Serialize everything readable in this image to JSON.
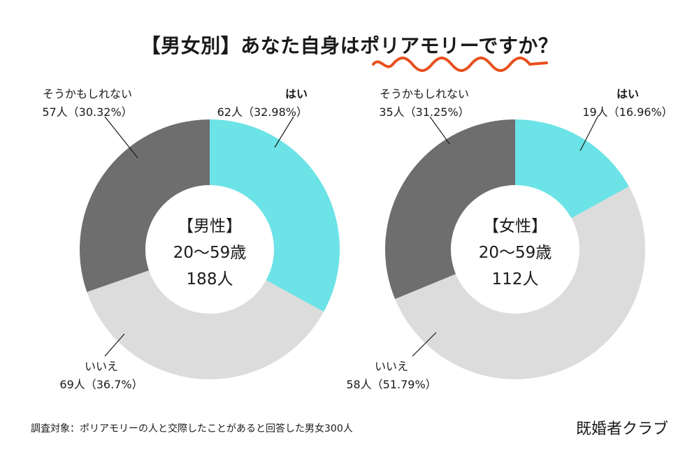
{
  "title": "【男女別】あなた自身はポリアモリーですか？",
  "chart_data": [
    {
      "type": "pie",
      "center_label": [
        "【男性】",
        "20〜59歳",
        "188人"
      ],
      "slices": [
        {
          "label": "はい",
          "count_text": "62人（32.98%）",
          "value": 32.98,
          "color": "#6ce3e6"
        },
        {
          "label": "いいえ",
          "count_text": "69人（36.7%）",
          "value": 36.7,
          "color": "#dcdcdc"
        },
        {
          "label": "そうかもしれない",
          "count_text": "57人（30.32%）",
          "value": 30.32,
          "color": "#6e6e6e"
        }
      ]
    },
    {
      "type": "pie",
      "center_label": [
        "【女性】",
        "20〜59歳",
        "112人"
      ],
      "slices": [
        {
          "label": "はい",
          "count_text": "19人（16.96%）",
          "value": 16.96,
          "color": "#6ce3e6"
        },
        {
          "label": "いいえ",
          "count_text": "58人（51.79%）",
          "value": 51.79,
          "color": "#dcdcdc"
        },
        {
          "label": "そうかもしれない",
          "count_text": "35人（31.25%）",
          "value": 31.25,
          "color": "#6e6e6e"
        }
      ]
    }
  ],
  "footnote": "調査対象：ポリアモリーの人と交際したことがあると回答した男女300人",
  "brand": "既婚者クラブ",
  "accent_color": "#e8501e"
}
